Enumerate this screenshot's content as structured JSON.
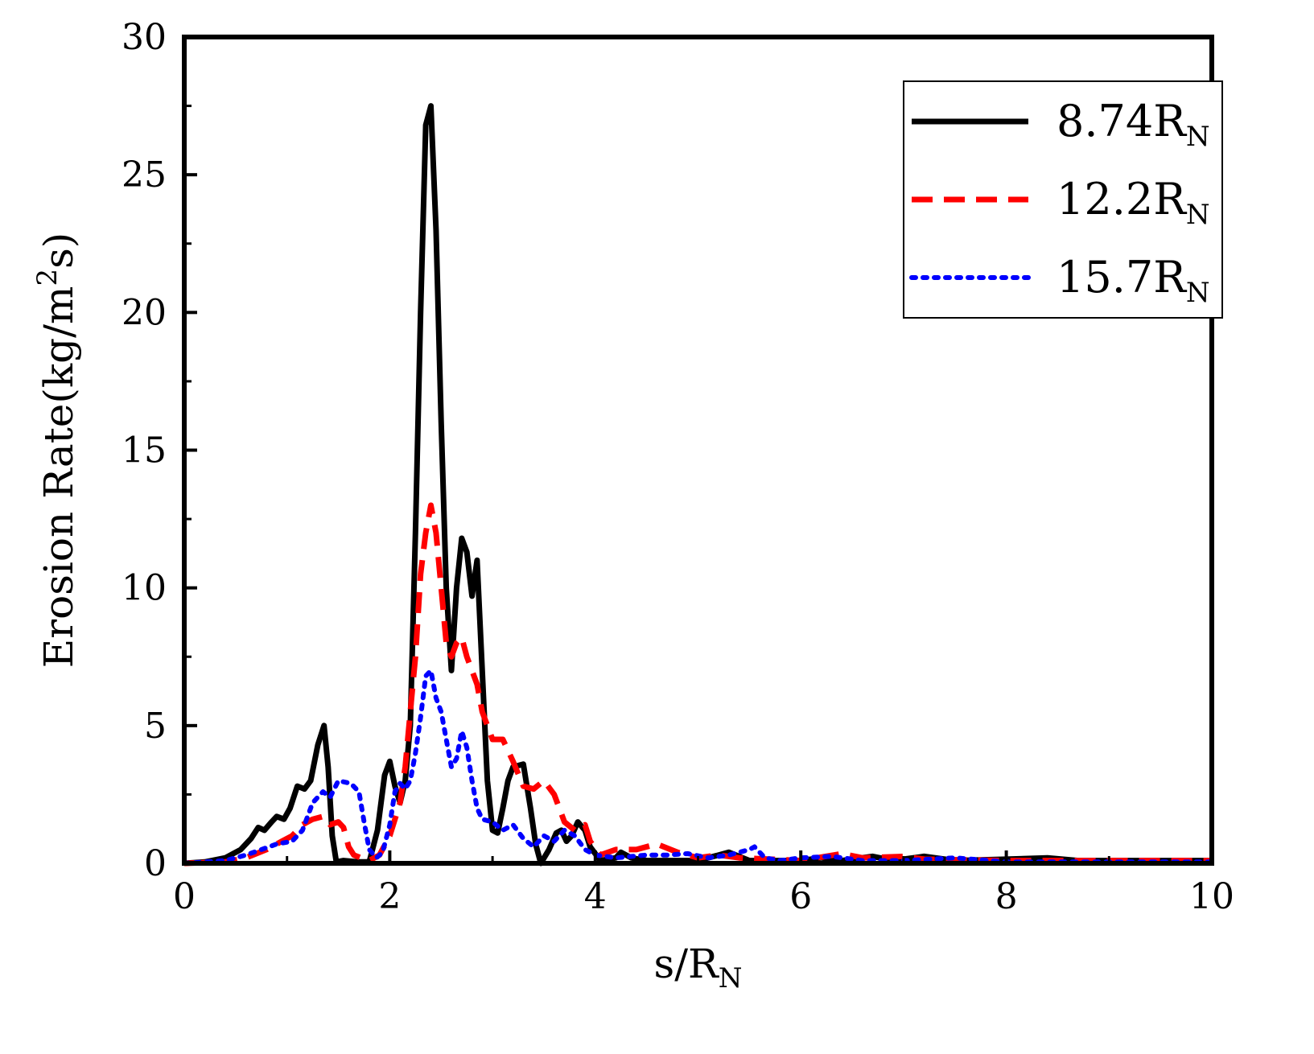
{
  "chart_data": {
    "type": "line",
    "title": "",
    "xlabel": {
      "main": "s/R",
      "sub": "N"
    },
    "ylabel": {
      "main": "Erosion Rate(kg/m",
      "sup": "2",
      "tail": "s)"
    },
    "xlim": [
      0,
      10
    ],
    "ylim": [
      0,
      30
    ],
    "xticks": [
      0,
      2,
      4,
      6,
      8,
      10
    ],
    "yticks": [
      0,
      5,
      10,
      15,
      20,
      25,
      30
    ],
    "grid": false,
    "legend_position": "top-right",
    "series": [
      {
        "name": "8.74R",
        "name_sub": "N",
        "color": "#000000",
        "style": "solid",
        "points": [
          [
            0,
            0
          ],
          [
            0.2,
            0.05
          ],
          [
            0.4,
            0.2
          ],
          [
            0.55,
            0.5
          ],
          [
            0.65,
            0.9
          ],
          [
            0.72,
            1.3
          ],
          [
            0.78,
            1.2
          ],
          [
            0.85,
            1.5
          ],
          [
            0.9,
            1.7
          ],
          [
            0.97,
            1.6
          ],
          [
            1.03,
            2.0
          ],
          [
            1.1,
            2.8
          ],
          [
            1.17,
            2.7
          ],
          [
            1.23,
            3.0
          ],
          [
            1.3,
            4.3
          ],
          [
            1.36,
            5.0
          ],
          [
            1.4,
            3.5
          ],
          [
            1.44,
            1.0
          ],
          [
            1.48,
            0.05
          ],
          [
            1.55,
            0.1
          ],
          [
            1.7,
            0.05
          ],
          [
            1.8,
            0.05
          ],
          [
            1.88,
            1.2
          ],
          [
            1.95,
            3.2
          ],
          [
            2.0,
            3.7
          ],
          [
            2.05,
            2.8
          ],
          [
            2.1,
            2.2
          ],
          [
            2.15,
            3.0
          ],
          [
            2.2,
            5.0
          ],
          [
            2.25,
            12.0
          ],
          [
            2.3,
            20.0
          ],
          [
            2.35,
            26.8
          ],
          [
            2.4,
            27.5
          ],
          [
            2.45,
            23.0
          ],
          [
            2.5,
            16.0
          ],
          [
            2.55,
            10.0
          ],
          [
            2.6,
            7.0
          ],
          [
            2.65,
            10.0
          ],
          [
            2.7,
            11.8
          ],
          [
            2.75,
            11.3
          ],
          [
            2.8,
            9.7
          ],
          [
            2.85,
            11.0
          ],
          [
            2.9,
            7.0
          ],
          [
            2.95,
            3.0
          ],
          [
            3.0,
            1.2
          ],
          [
            3.05,
            1.1
          ],
          [
            3.1,
            2.0
          ],
          [
            3.15,
            3.0
          ],
          [
            3.2,
            3.5
          ],
          [
            3.3,
            3.6
          ],
          [
            3.37,
            2.0
          ],
          [
            3.42,
            0.7
          ],
          [
            3.47,
            0.0
          ],
          [
            3.55,
            0.5
          ],
          [
            3.62,
            1.1
          ],
          [
            3.67,
            1.2
          ],
          [
            3.72,
            0.8
          ],
          [
            3.77,
            1.0
          ],
          [
            3.83,
            1.5
          ],
          [
            3.9,
            1.2
          ],
          [
            3.95,
            0.6
          ],
          [
            4.05,
            0.1
          ],
          [
            4.2,
            0.2
          ],
          [
            4.25,
            0.4
          ],
          [
            4.35,
            0.2
          ],
          [
            4.5,
            0.1
          ],
          [
            5.0,
            0.1
          ],
          [
            5.3,
            0.4
          ],
          [
            5.5,
            0.1
          ],
          [
            6.0,
            0.1
          ],
          [
            6.2,
            0.2
          ],
          [
            6.4,
            0.1
          ],
          [
            6.7,
            0.25
          ],
          [
            6.9,
            0.1
          ],
          [
            7.2,
            0.25
          ],
          [
            7.5,
            0.1
          ],
          [
            8.0,
            0.15
          ],
          [
            8.4,
            0.2
          ],
          [
            8.7,
            0.1
          ],
          [
            9.0,
            0.1
          ],
          [
            10.0,
            0.1
          ]
        ]
      },
      {
        "name": "12.2R",
        "name_sub": "N",
        "color": "#ff0000",
        "style": "dashed",
        "points": [
          [
            0,
            0.0
          ],
          [
            0.4,
            0.05
          ],
          [
            0.6,
            0.2
          ],
          [
            0.8,
            0.5
          ],
          [
            0.95,
            0.8
          ],
          [
            1.05,
            1.0
          ],
          [
            1.15,
            1.4
          ],
          [
            1.25,
            1.6
          ],
          [
            1.35,
            1.7
          ],
          [
            1.42,
            1.4
          ],
          [
            1.5,
            1.5
          ],
          [
            1.55,
            1.3
          ],
          [
            1.6,
            0.6
          ],
          [
            1.65,
            0.3
          ],
          [
            1.72,
            0.2
          ],
          [
            1.8,
            0.1
          ],
          [
            1.9,
            0.3
          ],
          [
            2.0,
            1.0
          ],
          [
            2.1,
            2.2
          ],
          [
            2.15,
            3.5
          ],
          [
            2.2,
            5.5
          ],
          [
            2.25,
            7.5
          ],
          [
            2.3,
            10.5
          ],
          [
            2.35,
            12.0
          ],
          [
            2.4,
            13.0
          ],
          [
            2.45,
            12.0
          ],
          [
            2.5,
            10.0
          ],
          [
            2.55,
            8.0
          ],
          [
            2.6,
            7.5
          ],
          [
            2.65,
            8.0
          ],
          [
            2.7,
            8.2
          ],
          [
            2.75,
            7.5
          ],
          [
            2.85,
            6.5
          ],
          [
            2.9,
            5.5
          ],
          [
            3.0,
            4.5
          ],
          [
            3.1,
            4.5
          ],
          [
            3.2,
            3.7
          ],
          [
            3.3,
            2.8
          ],
          [
            3.4,
            2.7
          ],
          [
            3.5,
            3.0
          ],
          [
            3.6,
            2.5
          ],
          [
            3.7,
            1.5
          ],
          [
            3.8,
            1.2
          ],
          [
            3.9,
            1.4
          ],
          [
            3.95,
            0.8
          ],
          [
            4.05,
            0.3
          ],
          [
            4.2,
            0.5
          ],
          [
            4.4,
            0.5
          ],
          [
            4.6,
            0.7
          ],
          [
            4.8,
            0.4
          ],
          [
            5.0,
            0.2
          ],
          [
            5.2,
            0.3
          ],
          [
            5.4,
            0.2
          ],
          [
            6.0,
            0.1
          ],
          [
            6.4,
            0.35
          ],
          [
            6.6,
            0.2
          ],
          [
            7.0,
            0.25
          ],
          [
            7.2,
            0.15
          ],
          [
            8.0,
            0.1
          ],
          [
            10.0,
            0.1
          ]
        ]
      },
      {
        "name": "15.7R",
        "name_sub": "N",
        "color": "#0000ff",
        "style": "dotted",
        "points": [
          [
            0,
            0.0
          ],
          [
            0.4,
            0.1
          ],
          [
            0.6,
            0.3
          ],
          [
            0.75,
            0.5
          ],
          [
            0.9,
            0.7
          ],
          [
            1.05,
            0.8
          ],
          [
            1.15,
            1.2
          ],
          [
            1.25,
            2.2
          ],
          [
            1.35,
            2.6
          ],
          [
            1.42,
            2.4
          ],
          [
            1.5,
            3.0
          ],
          [
            1.62,
            2.9
          ],
          [
            1.7,
            2.6
          ],
          [
            1.75,
            1.5
          ],
          [
            1.8,
            0.5
          ],
          [
            1.87,
            0.2
          ],
          [
            1.93,
            0.4
          ],
          [
            2.0,
            1.4
          ],
          [
            2.05,
            2.6
          ],
          [
            2.1,
            2.9
          ],
          [
            2.15,
            2.7
          ],
          [
            2.2,
            3.0
          ],
          [
            2.25,
            4.0
          ],
          [
            2.3,
            5.3
          ],
          [
            2.35,
            6.8
          ],
          [
            2.4,
            7.0
          ],
          [
            2.45,
            6.0
          ],
          [
            2.5,
            5.5
          ],
          [
            2.55,
            4.5
          ],
          [
            2.6,
            3.5
          ],
          [
            2.65,
            3.8
          ],
          [
            2.7,
            4.8
          ],
          [
            2.75,
            4.2
          ],
          [
            2.8,
            3.0
          ],
          [
            2.85,
            2.0
          ],
          [
            2.9,
            1.6
          ],
          [
            3.0,
            1.5
          ],
          [
            3.1,
            1.2
          ],
          [
            3.2,
            1.4
          ],
          [
            3.3,
            0.9
          ],
          [
            3.4,
            0.6
          ],
          [
            3.5,
            1.0
          ],
          [
            3.6,
            0.8
          ],
          [
            3.7,
            1.2
          ],
          [
            3.8,
            1.0
          ],
          [
            3.9,
            0.5
          ],
          [
            4.0,
            0.3
          ],
          [
            4.2,
            0.2
          ],
          [
            4.5,
            0.3
          ],
          [
            4.7,
            0.3
          ],
          [
            4.9,
            0.35
          ],
          [
            5.1,
            0.2
          ],
          [
            5.3,
            0.3
          ],
          [
            5.5,
            0.5
          ],
          [
            5.55,
            0.6
          ],
          [
            5.65,
            0.2
          ],
          [
            5.8,
            0.1
          ],
          [
            6.0,
            0.2
          ],
          [
            6.3,
            0.25
          ],
          [
            6.6,
            0.1
          ],
          [
            7.0,
            0.1
          ],
          [
            7.5,
            0.2
          ],
          [
            8.0,
            0.05
          ],
          [
            10.0,
            0.05
          ]
        ]
      }
    ]
  }
}
